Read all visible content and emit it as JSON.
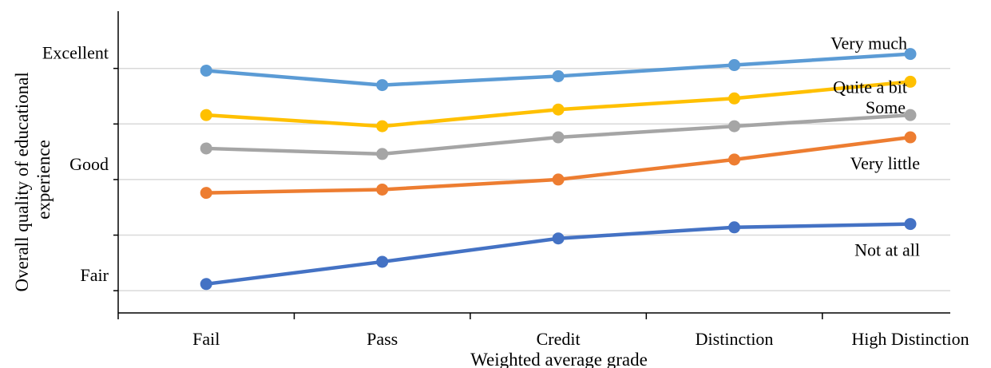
{
  "chart_data": {
    "type": "line",
    "categories": [
      "Fail",
      "Pass",
      "Credit",
      "Distinction",
      "High Distinction"
    ],
    "xlabel": "Weighted average grade",
    "ylabel": [
      "Overall quality of educational",
      "experience"
    ],
    "y_tick_labels": [
      {
        "label": "Excellent",
        "value": 4.0
      },
      {
        "label": "Good",
        "value": 3.0
      },
      {
        "label": "Fair",
        "value": 2.0
      }
    ],
    "ylim": [
      1.8,
      4.4
    ],
    "grid": true,
    "series": [
      {
        "name": "Very much",
        "color": "#5B9BD5",
        "values": [
          3.98,
          3.85,
          3.93,
          4.03,
          4.13
        ]
      },
      {
        "name": "Quite a bit",
        "color": "#FFC000",
        "values": [
          3.58,
          3.48,
          3.63,
          3.73,
          3.88
        ]
      },
      {
        "name": "Some",
        "color": "#A5A5A5",
        "values": [
          3.28,
          3.23,
          3.38,
          3.48,
          3.58
        ]
      },
      {
        "name": "Very little",
        "color": "#ED7D31",
        "values": [
          2.88,
          2.91,
          3.0,
          3.18,
          3.38
        ]
      },
      {
        "name": "Not at all",
        "color": "#4472C4",
        "values": [
          2.06,
          2.26,
          2.47,
          2.57,
          2.6
        ]
      }
    ]
  }
}
